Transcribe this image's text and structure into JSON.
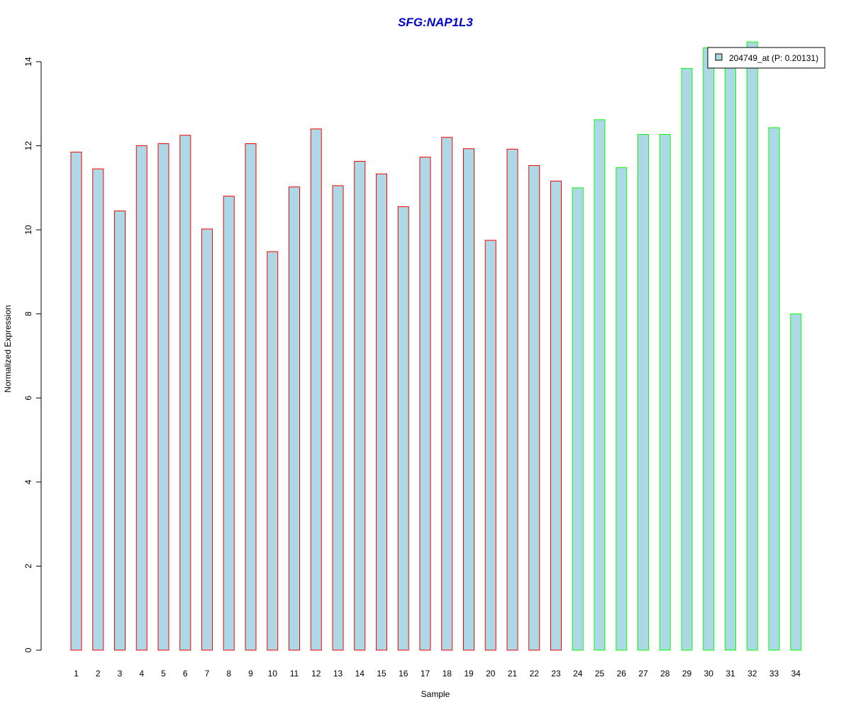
{
  "chart_data": {
    "type": "bar",
    "title": "SFG:NAP1L3",
    "xlabel": "Sample",
    "ylabel": "Normalized Expression",
    "ylim": [
      0,
      14
    ],
    "yticks": [
      0,
      2,
      4,
      6,
      8,
      10,
      12,
      14
    ],
    "grid": false,
    "legend": {
      "placement": "top-right",
      "label": "204749_at (P: 0.20131)"
    },
    "categories": [
      "1",
      "2",
      "3",
      "4",
      "5",
      "6",
      "7",
      "8",
      "9",
      "10",
      "11",
      "12",
      "13",
      "14",
      "15",
      "16",
      "17",
      "18",
      "19",
      "20",
      "21",
      "22",
      "23",
      "24",
      "25",
      "26",
      "27",
      "28",
      "29",
      "30",
      "31",
      "32",
      "33",
      "34"
    ],
    "series": [
      {
        "name": "204749_at (P: 0.20131)",
        "values": [
          11.85,
          11.45,
          10.45,
          12.0,
          12.05,
          12.25,
          10.02,
          10.8,
          12.05,
          9.48,
          11.02,
          12.4,
          11.05,
          11.63,
          11.33,
          10.55,
          11.73,
          12.2,
          11.93,
          9.75,
          11.92,
          11.53,
          11.16,
          11.0,
          12.62,
          11.48,
          12.27,
          12.27,
          13.84,
          14.33,
          13.95,
          14.47,
          12.43,
          8.0
        ],
        "groups": [
          "red",
          "red",
          "red",
          "red",
          "red",
          "red",
          "red",
          "red",
          "red",
          "red",
          "red",
          "red",
          "red",
          "red",
          "red",
          "red",
          "red",
          "red",
          "red",
          "red",
          "red",
          "red",
          "red",
          "green",
          "green",
          "green",
          "green",
          "green",
          "green",
          "green",
          "green",
          "green",
          "green",
          "green"
        ]
      }
    ],
    "colors": {
      "fill": "#add8e6",
      "red_border": "#ff0000",
      "green_border": "#00ff00",
      "title": "#0000cd",
      "axis": "#000000"
    }
  }
}
